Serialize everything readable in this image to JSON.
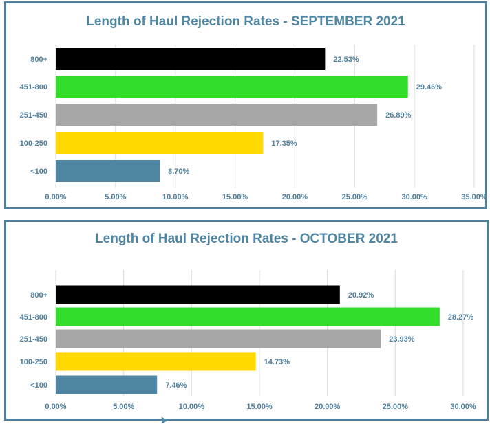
{
  "colors": {
    "frame": "#4f7f9c",
    "title": "#4f86a3",
    "text": "#4f7f9c",
    "grid": "#d9d9d9"
  },
  "chart_data": [
    {
      "type": "bar",
      "orientation": "horizontal",
      "title": "Length of Haul Rejection Rates - SEPTEMBER 2021",
      "categories": [
        "800+",
        "451-800",
        "251-450",
        "100-250",
        "<100"
      ],
      "values": [
        22.53,
        29.46,
        26.89,
        17.35,
        8.7
      ],
      "value_labels": [
        "22.53%",
        "29.46%",
        "26.89%",
        "17.35%",
        "8.70%"
      ],
      "bar_colors": [
        "#000000",
        "#33dd2b",
        "#a6a6a6",
        "#ffd900",
        "#4f86a3"
      ],
      "xlim": [
        0,
        35
      ],
      "xticks": [
        "0.00%",
        "5.00%",
        "10.00%",
        "15.00%",
        "20.00%",
        "25.00%",
        "30.00%",
        "35.00%"
      ],
      "xlabel": "",
      "ylabel": "",
      "grid": "vertical",
      "legend": "none"
    },
    {
      "type": "bar",
      "orientation": "horizontal",
      "title": "Length of Haul Rejection Rates - OCTOBER 2021",
      "categories": [
        "800+",
        "451-800",
        "251-450",
        "100-250",
        "<100"
      ],
      "values": [
        20.92,
        28.27,
        23.93,
        14.73,
        7.46
      ],
      "value_labels": [
        "20.92%",
        "28.27%",
        "23.93%",
        "14.73%",
        "7.46%"
      ],
      "bar_colors": [
        "#000000",
        "#33dd2b",
        "#a6a6a6",
        "#ffd900",
        "#4f86a3"
      ],
      "xlim": [
        0,
        30
      ],
      "xticks": [
        "0.00%",
        "5.00%",
        "10.00%",
        "15.00%",
        "20.00%",
        "25.00%",
        "30.00%"
      ],
      "xlabel": "",
      "ylabel": "",
      "grid": "vertical",
      "legend": "none"
    }
  ]
}
